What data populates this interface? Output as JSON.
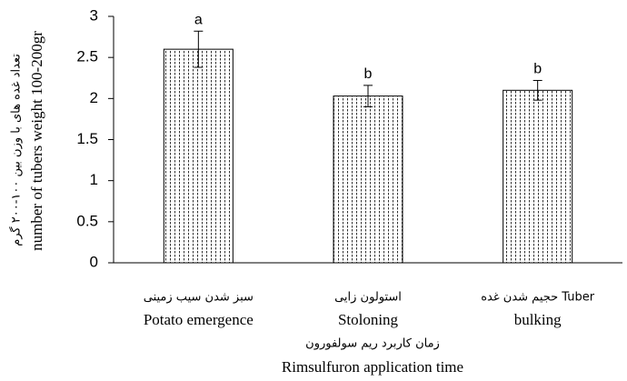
{
  "chart_data": {
    "type": "bar",
    "y_label": "number of tubers weight 100-200gr",
    "y_label_persian": "تعداد غده های با وزن بین ۱۰۰-۲۰۰ گرم",
    "x_label": "Rimsulfuron application time",
    "x_label_persian": "زمان کاربرد ریم سولفورون",
    "categories": [
      "Potato emergence",
      "Stoloning",
      "bulking"
    ],
    "categories_persian": [
      "سبز شدن سیب زمینی",
      "استولون زایی",
      "حجیم شدن غده Tuber"
    ],
    "values": [
      2.6,
      2.03,
      2.1
    ],
    "errors": [
      0.22,
      0.13,
      0.12
    ],
    "letters": [
      "a",
      "b",
      "b"
    ],
    "color": "#000000",
    "ylim": [
      0,
      3
    ],
    "yticks": [
      0,
      0.5,
      1,
      1.5,
      2,
      2.5,
      3
    ]
  }
}
